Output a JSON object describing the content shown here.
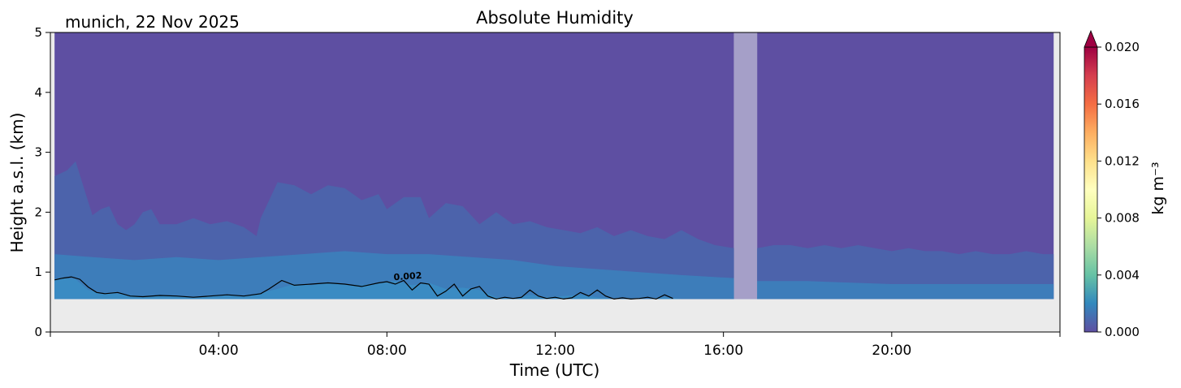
{
  "chart_data": {
    "type": "heatmap",
    "title": "Absolute Humidity",
    "subtitle": "munich, 22 Nov 2025",
    "xlabel": "Time (UTC)",
    "ylabel": "Height a.s.l. (km)",
    "xlim": [
      0,
      24
    ],
    "ylim": [
      0,
      5
    ],
    "x_ticks": [
      {
        "value": 4,
        "label": "04:00"
      },
      {
        "value": 8,
        "label": "08:00"
      },
      {
        "value": 12,
        "label": "12:00"
      },
      {
        "value": 16,
        "label": "16:00"
      },
      {
        "value": 20,
        "label": "20:00"
      }
    ],
    "y_ticks": [
      {
        "value": 0,
        "label": "0"
      },
      {
        "value": 1,
        "label": "1"
      },
      {
        "value": 2,
        "label": "2"
      },
      {
        "value": 3,
        "label": "3"
      },
      {
        "value": 4,
        "label": "4"
      },
      {
        "value": 5,
        "label": "5"
      }
    ],
    "data_start_height_km": 0.55,
    "data_time_range": [
      0.1,
      23.85
    ],
    "missing_data_interval": [
      16.25,
      16.8
    ],
    "background_color": "#ebebeb",
    "colorbar": {
      "label": "kg m⁻³",
      "min": 0.0,
      "max": 0.02,
      "extend": "max",
      "colormap": "Spectral_r",
      "colors": [
        "#5e4fa2",
        "#3288bd",
        "#66c2a5",
        "#abdda4",
        "#e6f598",
        "#ffffbf",
        "#fee08b",
        "#fdae61",
        "#f46d43",
        "#d53e4f",
        "#9e0142"
      ],
      "ticks": [
        {
          "value": 0.0,
          "label": "0.000"
        },
        {
          "value": 0.004,
          "label": "0.004"
        },
        {
          "value": 0.008,
          "label": "0.008"
        },
        {
          "value": 0.012,
          "label": "0.012"
        },
        {
          "value": 0.016,
          "label": "0.016"
        },
        {
          "value": 0.02,
          "label": "0.020"
        }
      ]
    },
    "bands": [
      {
        "name": "~0.0009 kg m-3 layer (upper boundary)",
        "color": "#4c63ab",
        "x": [
          0.1,
          0.4,
          0.6,
          0.8,
          1.0,
          1.2,
          1.4,
          1.6,
          1.8,
          2.0,
          2.2,
          2.4,
          2.6,
          3.0,
          3.4,
          3.8,
          4.2,
          4.6,
          4.9,
          5.0,
          5.4,
          5.8,
          6.2,
          6.6,
          7.0,
          7.4,
          7.8,
          8.0,
          8.4,
          8.8,
          9.0,
          9.4,
          9.8,
          10.2,
          10.6,
          11.0,
          11.4,
          11.8,
          12.2,
          12.6,
          13.0,
          13.4,
          13.8,
          14.2,
          14.6,
          15.0,
          15.4,
          15.8,
          16.25,
          16.8,
          17.2,
          17.6,
          18.0,
          18.4,
          18.8,
          19.2,
          19.6,
          20.0,
          20.4,
          20.8,
          21.2,
          21.6,
          22.0,
          22.4,
          22.8,
          23.2,
          23.6,
          23.85
        ],
        "top": [
          2.6,
          2.7,
          2.85,
          2.4,
          1.95,
          2.05,
          2.1,
          1.8,
          1.7,
          1.8,
          2.0,
          2.05,
          1.8,
          1.8,
          1.9,
          1.8,
          1.85,
          1.75,
          1.6,
          1.9,
          2.5,
          2.45,
          2.3,
          2.45,
          2.4,
          2.2,
          2.3,
          2.05,
          2.25,
          2.25,
          1.9,
          2.15,
          2.1,
          1.8,
          2.0,
          1.8,
          1.85,
          1.75,
          1.7,
          1.65,
          1.75,
          1.6,
          1.7,
          1.6,
          1.55,
          1.7,
          1.55,
          1.45,
          1.4,
          1.4,
          1.45,
          1.45,
          1.4,
          1.45,
          1.4,
          1.45,
          1.4,
          1.35,
          1.4,
          1.35,
          1.35,
          1.3,
          1.35,
          1.3,
          1.3,
          1.35,
          1.3,
          1.3
        ]
      },
      {
        "name": "~0.0016 kg m-3 layer (upper boundary)",
        "color": "#3d7dba",
        "x": [
          0.1,
          1.0,
          2.0,
          3.0,
          4.0,
          5.0,
          6.0,
          7.0,
          8.0,
          9.0,
          10.0,
          11.0,
          12.0,
          13.0,
          14.0,
          15.0,
          16.25,
          16.8,
          18.0,
          20.0,
          22.0,
          23.85
        ],
        "top": [
          1.3,
          1.25,
          1.2,
          1.25,
          1.2,
          1.25,
          1.3,
          1.35,
          1.3,
          1.3,
          1.25,
          1.2,
          1.1,
          1.05,
          1.0,
          0.95,
          0.9,
          0.85,
          0.85,
          0.8,
          0.8,
          0.8
        ]
      },
      {
        "name": "~0.002 kg m-3 layer (upper boundary)",
        "color": "#3a8bc3",
        "x": [
          0.1,
          0.3,
          0.6,
          0.9,
          1.2,
          1.5,
          1.8,
          2.2,
          2.6,
          3.0,
          3.4,
          3.8,
          4.2,
          4.6,
          5.0,
          5.4,
          5.8,
          6.2,
          6.6,
          7.0,
          7.4,
          7.8,
          8.2,
          8.6,
          9.0,
          9.4,
          9.8,
          10.2,
          10.6,
          11.0,
          11.4,
          11.8,
          12.2,
          12.6,
          13.0,
          13.4,
          13.8,
          14.2,
          14.6,
          15.0,
          15.4,
          15.8,
          16.25
        ],
        "top": [
          0.87,
          0.9,
          0.88,
          0.7,
          0.65,
          0.65,
          0.62,
          0.6,
          0.62,
          0.6,
          0.58,
          0.6,
          0.62,
          0.6,
          0.65,
          0.72,
          0.8,
          0.78,
          0.82,
          0.8,
          0.78,
          0.82,
          0.85,
          0.78,
          0.82,
          0.72,
          0.74,
          0.7,
          0.58,
          0.56,
          0.62,
          0.58,
          0.6,
          0.62,
          0.58,
          0.55,
          0.56,
          0.55,
          0.58,
          0.55,
          0.55,
          0.55,
          0.55
        ]
      }
    ],
    "contours": [
      {
        "level_label": "0.002",
        "label_at": {
          "x": 8.5,
          "y": 0.88
        },
        "color": "#000000",
        "x": [
          0.1,
          0.3,
          0.5,
          0.7,
          0.9,
          1.1,
          1.3,
          1.6,
          1.9,
          2.2,
          2.6,
          3.0,
          3.4,
          3.8,
          4.2,
          4.6,
          5.0,
          5.2,
          5.5,
          5.8,
          6.2,
          6.6,
          7.0,
          7.4,
          7.8,
          8.0,
          8.2,
          8.4,
          8.6,
          8.8,
          9.0,
          9.2,
          9.4,
          9.6,
          9.8,
          10.0,
          10.2,
          10.4,
          10.6,
          10.8,
          11.0,
          11.2,
          11.4,
          11.6,
          11.8,
          12.0,
          12.2,
          12.4,
          12.6,
          12.8,
          13.0,
          13.2,
          13.4,
          13.6,
          13.8,
          14.0,
          14.2,
          14.4,
          14.6,
          14.8
        ],
        "y": [
          0.87,
          0.9,
          0.92,
          0.88,
          0.75,
          0.66,
          0.64,
          0.66,
          0.6,
          0.59,
          0.61,
          0.6,
          0.58,
          0.6,
          0.62,
          0.6,
          0.64,
          0.72,
          0.86,
          0.78,
          0.8,
          0.82,
          0.8,
          0.76,
          0.82,
          0.84,
          0.8,
          0.86,
          0.7,
          0.82,
          0.8,
          0.6,
          0.68,
          0.8,
          0.6,
          0.72,
          0.76,
          0.6,
          0.55,
          0.58,
          0.56,
          0.58,
          0.7,
          0.6,
          0.56,
          0.58,
          0.55,
          0.57,
          0.66,
          0.6,
          0.7,
          0.6,
          0.55,
          0.57,
          0.55,
          0.56,
          0.58,
          0.55,
          0.62,
          0.56
        ]
      }
    ]
  }
}
